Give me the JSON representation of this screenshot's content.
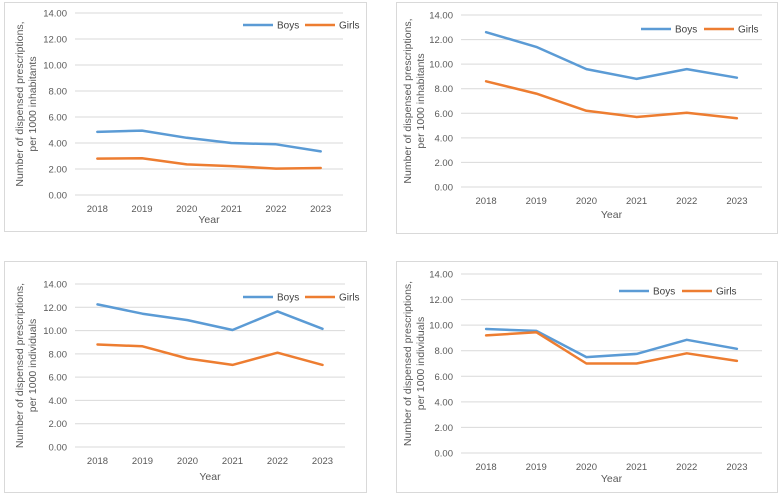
{
  "colors": {
    "boys": "#5B9BD5",
    "girls": "#ED7D31",
    "grid": "#d9d9d9",
    "text": "#595959"
  },
  "chart_data": [
    {
      "type": "line",
      "categories": [
        "2018",
        "2019",
        "2020",
        "2021",
        "2022",
        "2023"
      ],
      "series": [
        {
          "name": "Boys",
          "values": [
            4.85,
            4.95,
            4.4,
            4.0,
            3.9,
            3.35
          ]
        },
        {
          "name": "Girls",
          "values": [
            2.8,
            2.82,
            2.35,
            2.22,
            2.03,
            2.08
          ]
        }
      ],
      "ylim": [
        0,
        14
      ],
      "yticks": [
        "0.00",
        "2.00",
        "4.00",
        "6.00",
        "8.00",
        "10.00",
        "12.00",
        "14.00"
      ],
      "xlabel": "Year",
      "ylabel": [
        "Number of dispensed prescriptions,",
        "per 1000 inhabitants"
      ],
      "grid": true,
      "legend": "top-right"
    },
    {
      "type": "line",
      "categories": [
        "2018",
        "2019",
        "2020",
        "2021",
        "2022",
        "2023"
      ],
      "series": [
        {
          "name": "Boys",
          "values": [
            12.6,
            11.4,
            9.6,
            8.8,
            9.6,
            8.9
          ]
        },
        {
          "name": "Girls",
          "values": [
            8.6,
            7.6,
            6.2,
            5.7,
            6.05,
            5.6
          ]
        }
      ],
      "ylim": [
        0,
        14
      ],
      "yticks": [
        "0.00",
        "2.00",
        "4.00",
        "6.00",
        "8.00",
        "10.00",
        "12.00",
        "14.00"
      ],
      "xlabel": "Year",
      "ylabel": [
        "Number of dispensed prescriptions,",
        "per 1000 inhabitants"
      ],
      "grid": true,
      "legend": "top-right"
    },
    {
      "type": "line",
      "categories": [
        "2018",
        "2019",
        "2020",
        "2021",
        "2022",
        "2023"
      ],
      "series": [
        {
          "name": "Boys",
          "values": [
            12.25,
            11.45,
            10.9,
            10.05,
            11.65,
            10.15
          ]
        },
        {
          "name": "Girls",
          "values": [
            8.8,
            8.65,
            7.6,
            7.05,
            8.1,
            7.05
          ]
        }
      ],
      "ylim": [
        0,
        14
      ],
      "yticks": [
        "0.00",
        "2.00",
        "4.00",
        "6.00",
        "8.00",
        "10.00",
        "12.00",
        "14.00"
      ],
      "xlabel": "Year",
      "ylabel": [
        "Number of dispensed prescriptions,",
        "per 1000 individuals"
      ],
      "grid": true,
      "legend": "top-right"
    },
    {
      "type": "line",
      "categories": [
        "2018",
        "2019",
        "2020",
        "2021",
        "2022",
        "2023"
      ],
      "series": [
        {
          "name": "Boys",
          "values": [
            9.7,
            9.55,
            7.5,
            7.75,
            8.85,
            8.15
          ]
        },
        {
          "name": "Girls",
          "values": [
            9.2,
            9.45,
            7.0,
            7.0,
            7.8,
            7.2
          ]
        }
      ],
      "ylim": [
        0,
        14
      ],
      "yticks": [
        "0.00",
        "2.00",
        "4.00",
        "6.00",
        "8.00",
        "10.00",
        "12.00",
        "14.00"
      ],
      "xlabel": "Year",
      "ylabel": [
        "Number of dispensed prescriptions,",
        "per 1000 individuals"
      ],
      "grid": true,
      "legend": "top-right"
    }
  ]
}
